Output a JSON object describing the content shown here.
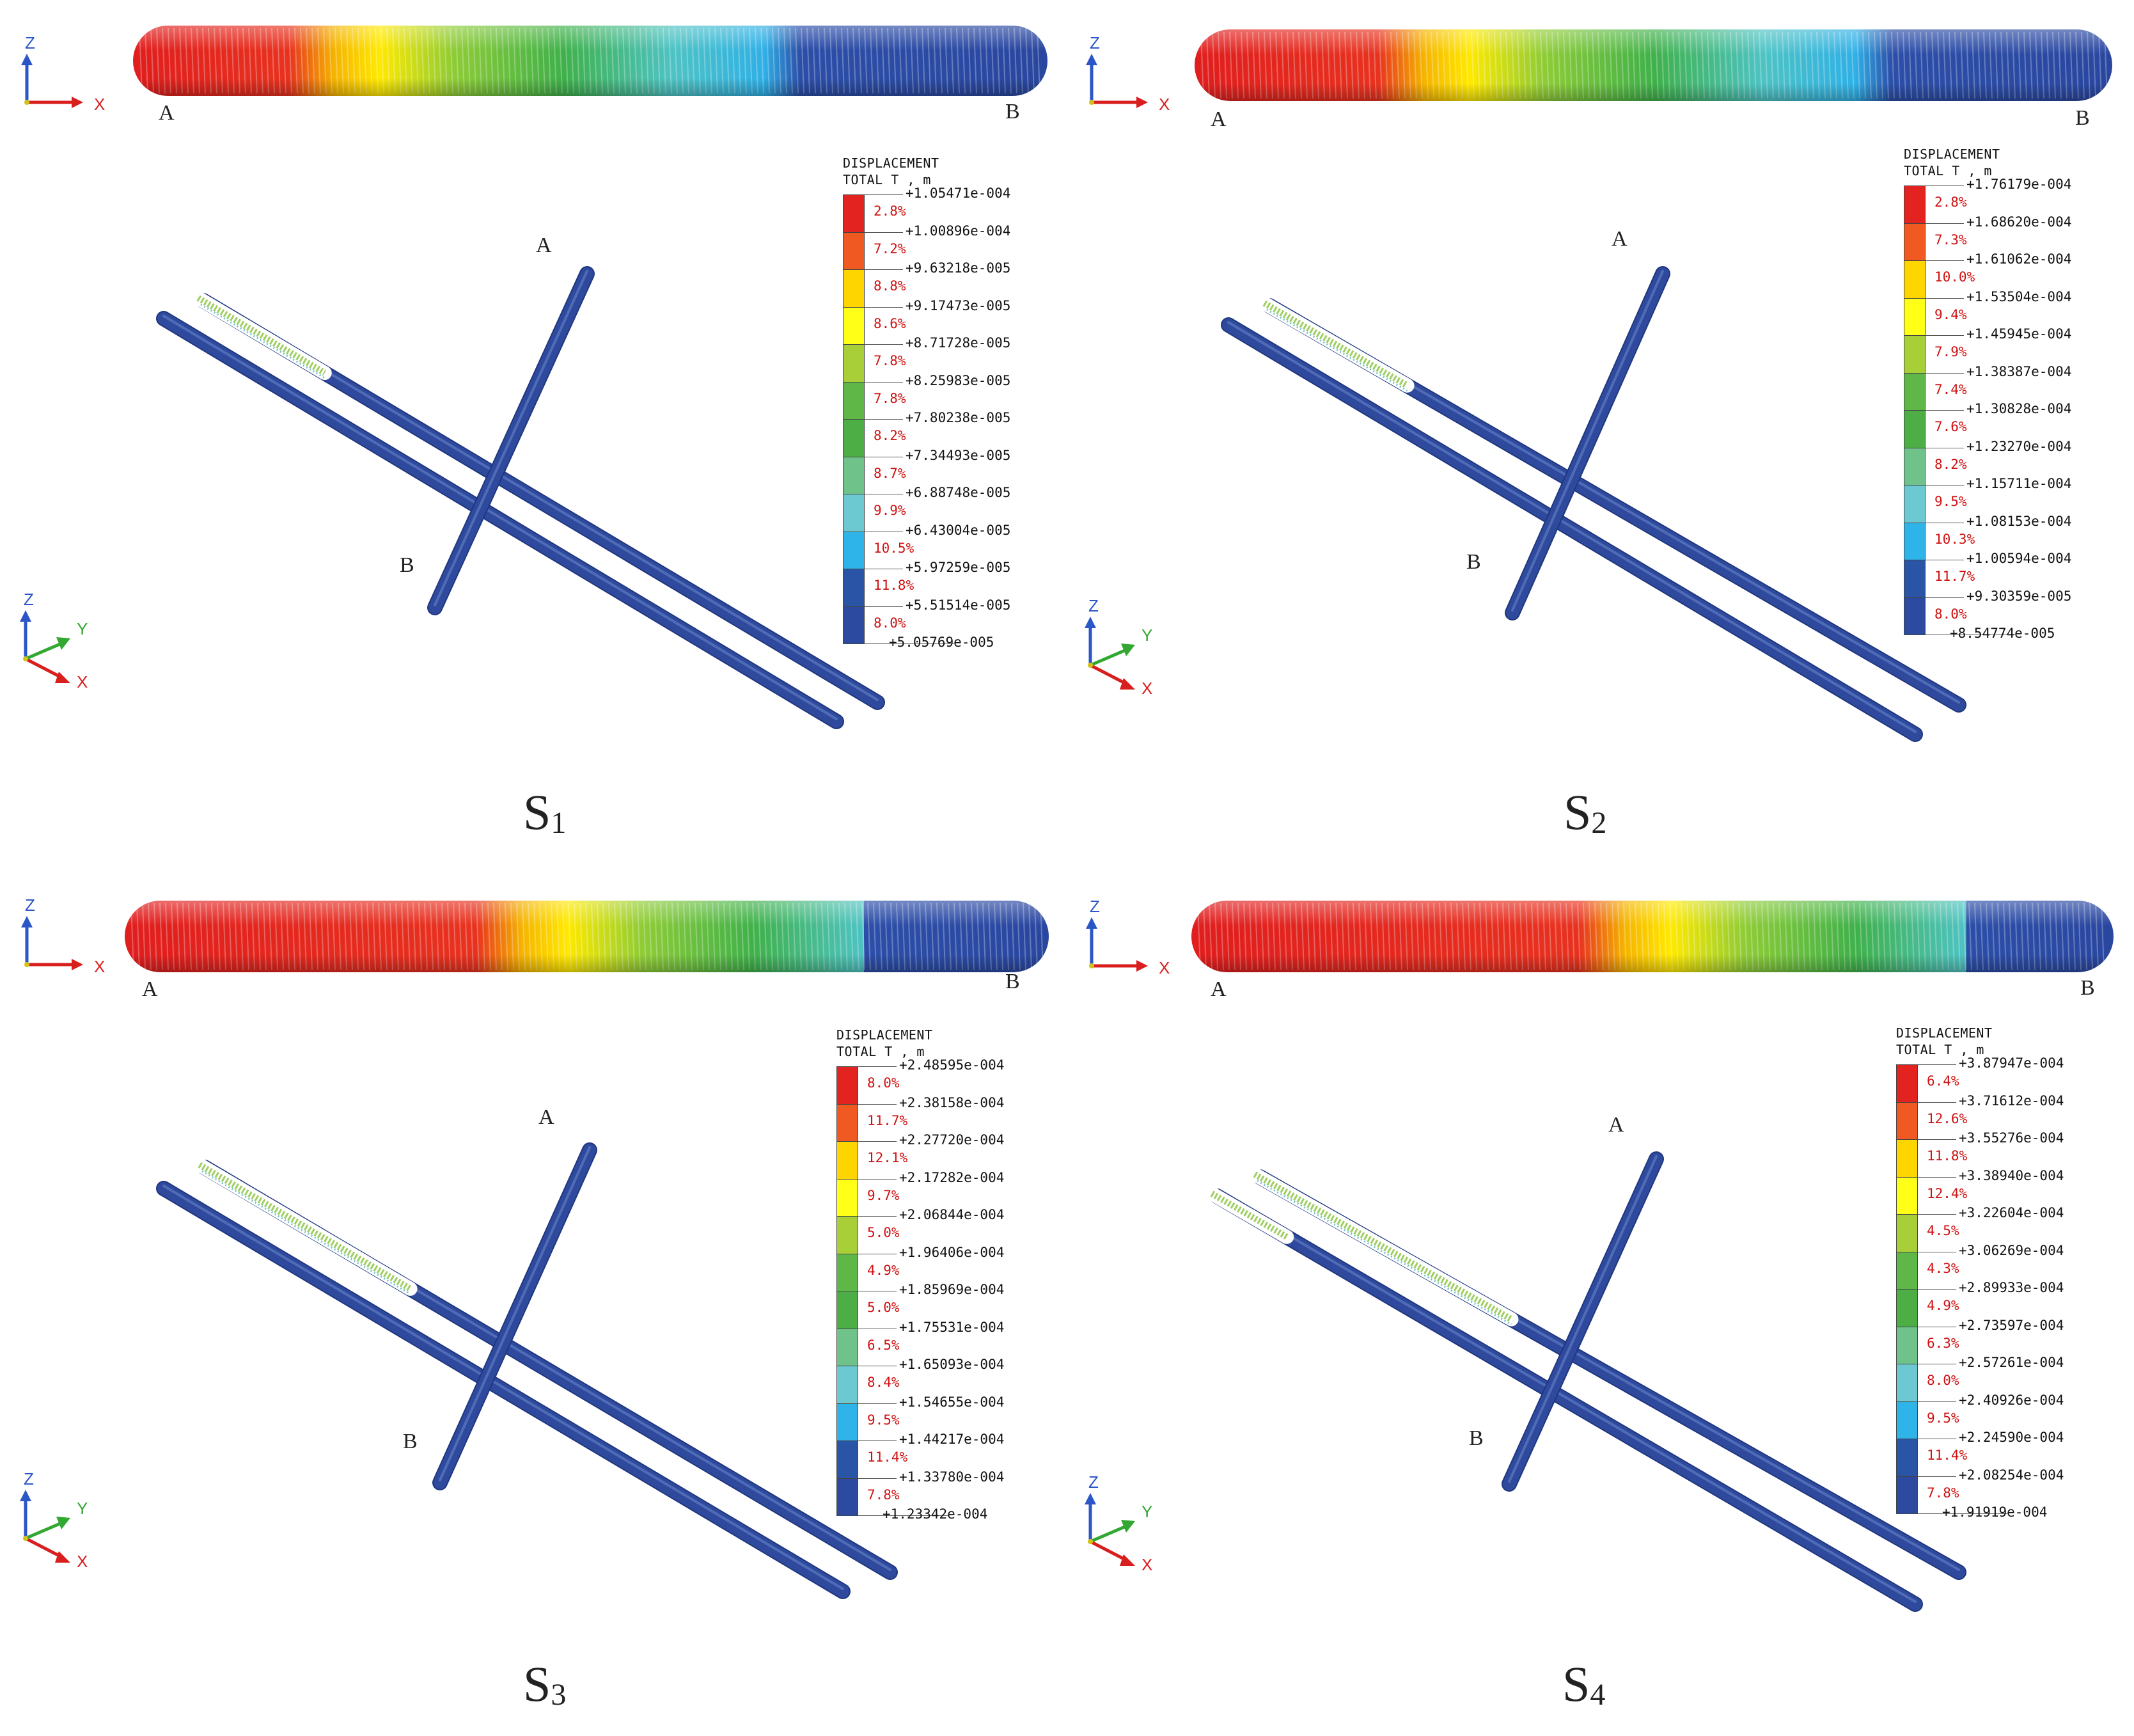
{
  "legend_title": [
    "DISPLACEMENT",
    "TOTAL T , m"
  ],
  "axes": {
    "z": "Z",
    "x": "X",
    "y": "Y"
  },
  "colors": {
    "bands": [
      "#e2231f",
      "#f05a22",
      "#ffd500",
      "#ffff18",
      "#a9cf38",
      "#5fb748",
      "#4cae45",
      "#6fc28a",
      "#6cc9d1",
      "#2fb4ea",
      "#2a55a6",
      "#2b4aa0"
    ],
    "rod": "#2f4a9c"
  },
  "panels": [
    {
      "label_main": "S",
      "label_sub": "1",
      "point_a": "A",
      "point_b": "B",
      "bar_gradient_red_stop": 0.17,
      "ticks": [
        "+1.05471e-004",
        "+1.00896e-004",
        "+9.63218e-005",
        "+9.17473e-005",
        "+8.71728e-005",
        "+8.25983e-005",
        "+7.80238e-005",
        "+7.34493e-005",
        "+6.88748e-005",
        "+6.43004e-005",
        "+5.97259e-005",
        "+5.51514e-005",
        "+5.05769e-005"
      ],
      "percents": [
        "2.8%",
        "7.2%",
        "8.8%",
        "8.6%",
        "7.8%",
        "7.8%",
        "8.2%",
        "8.7%",
        "9.9%",
        "10.5%",
        "11.8%",
        "8.0%"
      ]
    },
    {
      "label_main": "S",
      "label_sub": "2",
      "point_a": "A",
      "point_b": "B",
      "bar_gradient_red_stop": 0.2,
      "ticks": [
        "+1.76179e-004",
        "+1.68620e-004",
        "+1.61062e-004",
        "+1.53504e-004",
        "+1.45945e-004",
        "+1.38387e-004",
        "+1.30828e-004",
        "+1.23270e-004",
        "+1.15711e-004",
        "+1.08153e-004",
        "+1.00594e-004",
        "+9.30359e-005",
        "+8.54774e-005"
      ],
      "percents": [
        "2.8%",
        "7.3%",
        "10.0%",
        "9.4%",
        "7.9%",
        "7.4%",
        "7.6%",
        "8.2%",
        "9.5%",
        "10.3%",
        "11.7%",
        "8.0%"
      ]
    },
    {
      "label_main": "S",
      "label_sub": "3",
      "point_a": "A",
      "point_b": "B",
      "bar_gradient_red_stop": 0.38,
      "ticks": [
        "+2.48595e-004",
        "+2.38158e-004",
        "+2.27720e-004",
        "+2.17282e-004",
        "+2.06844e-004",
        "+1.96406e-004",
        "+1.85969e-004",
        "+1.75531e-004",
        "+1.65093e-004",
        "+1.54655e-004",
        "+1.44217e-004",
        "+1.33780e-004",
        "+1.23342e-004"
      ],
      "percents": [
        "8.0%",
        "11.7%",
        "12.1%",
        "9.7%",
        "5.0%",
        "4.9%",
        "5.0%",
        "6.5%",
        "8.4%",
        "9.5%",
        "11.4%",
        "7.8%"
      ]
    },
    {
      "label_main": "S",
      "label_sub": "4",
      "point_a": "A",
      "point_b": "B",
      "bar_gradient_red_stop": 0.42,
      "ticks": [
        "+3.87947e-004",
        "+3.71612e-004",
        "+3.55276e-004",
        "+3.38940e-004",
        "+3.22604e-004",
        "+3.06269e-004",
        "+2.89933e-004",
        "+2.73597e-004",
        "+2.57261e-004",
        "+2.40926e-004",
        "+2.24590e-004",
        "+2.08254e-004",
        "+1.91919e-004"
      ],
      "percents": [
        "6.4%",
        "12.6%",
        "11.8%",
        "12.4%",
        "4.5%",
        "4.3%",
        "4.9%",
        "6.3%",
        "8.0%",
        "9.5%",
        "11.4%",
        "7.8%"
      ]
    }
  ]
}
